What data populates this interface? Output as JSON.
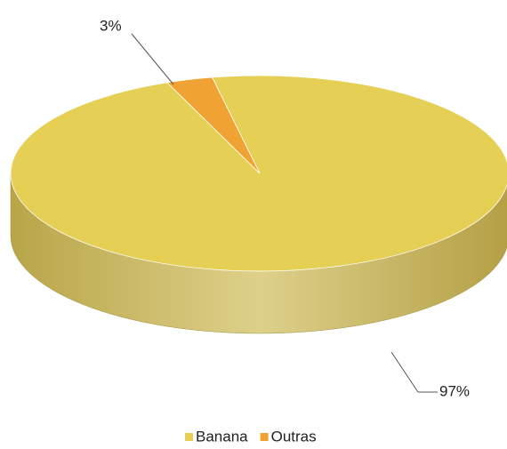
{
  "chart_data": {
    "type": "pie3d",
    "categories": [
      "Banana",
      "Outras"
    ],
    "values": [
      97,
      3
    ],
    "value_labels": [
      "97%",
      "3%"
    ],
    "colors": [
      "#e6cf55",
      "#f0a232"
    ],
    "legend": "bottom"
  }
}
